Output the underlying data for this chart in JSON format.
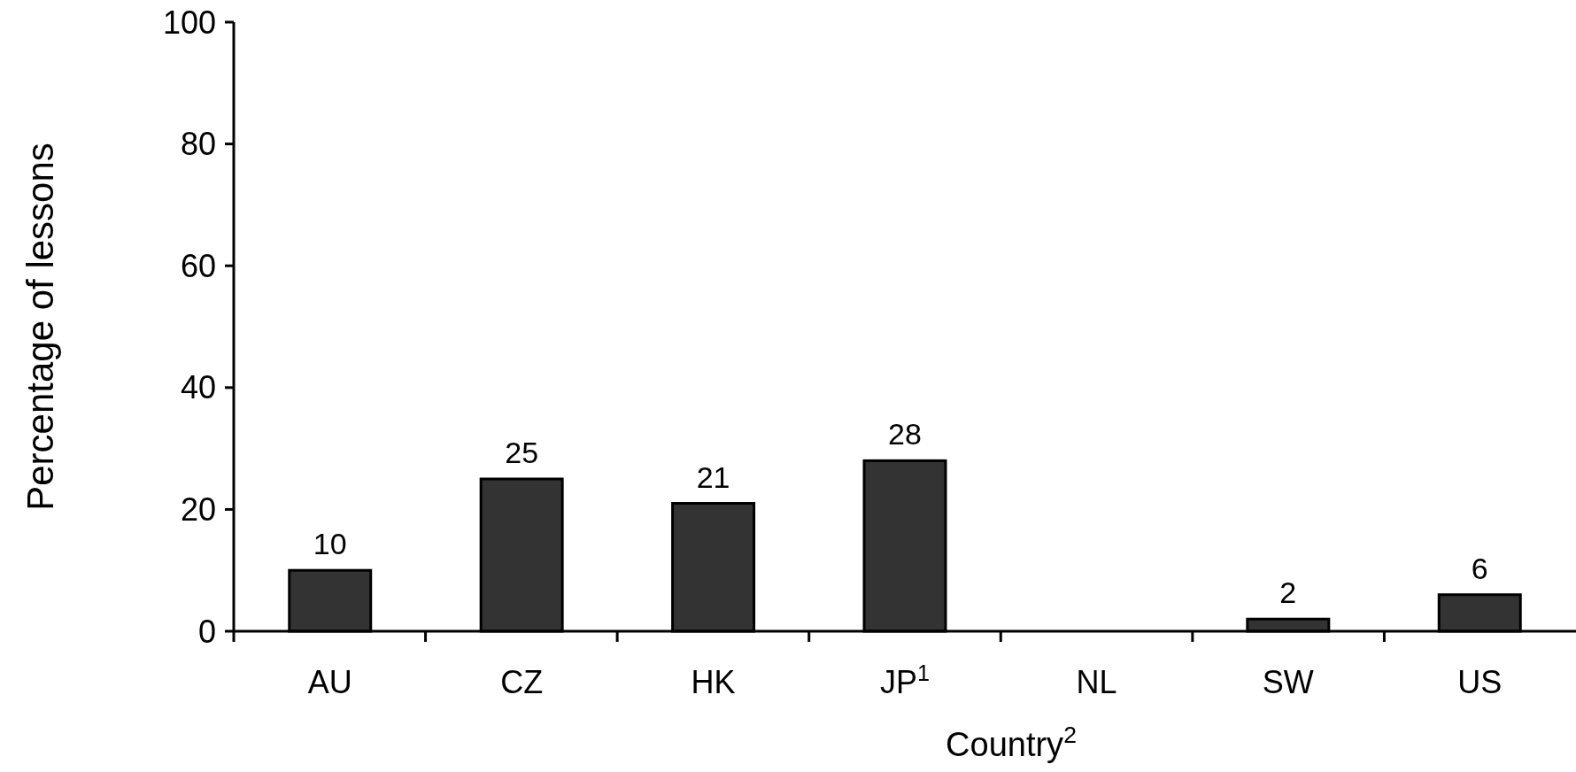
{
  "chart_data": {
    "type": "bar",
    "xlabel": "Country$^{2}$",
    "ylabel": "Percentage of lessons",
    "categories": [
      "AU",
      "CZ",
      "HK",
      "JP$^{1}$",
      "NL",
      "SW",
      "US"
    ],
    "values": [
      10,
      25,
      21,
      28,
      null,
      2,
      6
    ],
    "color": "#333333",
    "ylim": [
      0,
      100
    ],
    "yticks": [
      0,
      20,
      40,
      60,
      80,
      100
    ],
    "data_labels": true
  }
}
